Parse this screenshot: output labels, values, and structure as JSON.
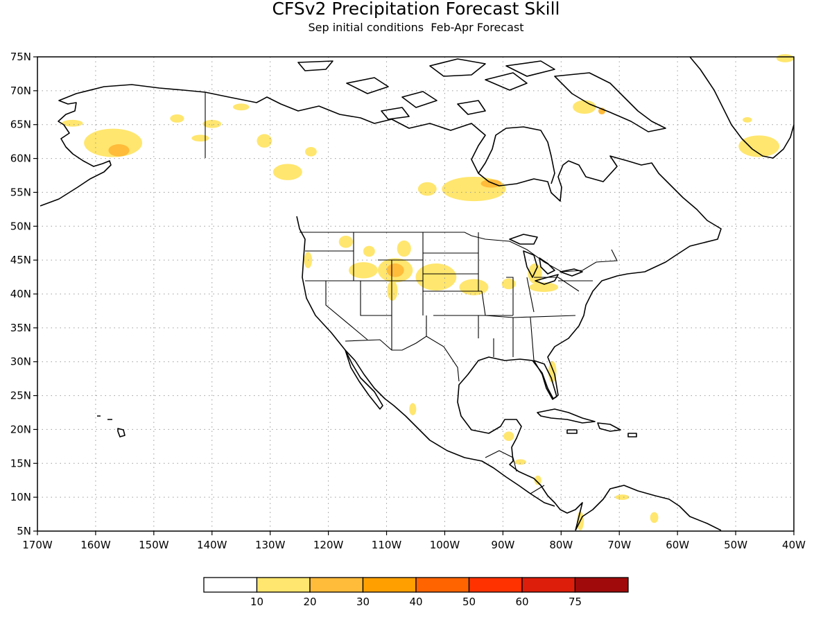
{
  "title": "CFSv2 Precipitation Forecast Skill",
  "subtitle": "Sep initial conditions  Feb-Apr Forecast",
  "lat_labels": [
    "75N",
    "70N",
    "65N",
    "60N",
    "55N",
    "50N",
    "45N",
    "40N",
    "35N",
    "30N",
    "25N",
    "20N",
    "15N",
    "10N",
    "5N"
  ],
  "lon_labels": [
    "170W",
    "160W",
    "150W",
    "140W",
    "130W",
    "120W",
    "110W",
    "100W",
    "90W",
    "80W",
    "70W",
    "60W",
    "50W",
    "40W"
  ],
  "map_extent": {
    "lon_min": -170,
    "lon_max": -40,
    "lat_min": 5,
    "lat_max": 75
  },
  "colorbar": {
    "colors": [
      "#ffffff",
      "#ffe66e",
      "#ffbb3a",
      "#ffa000",
      "#ff6400",
      "#ff3200",
      "#dc1e0a",
      "#a00a0a"
    ],
    "labels": [
      "10",
      "20",
      "30",
      "40",
      "50",
      "60",
      "75"
    ]
  },
  "skill_regions": [
    {
      "level": 1,
      "lon": -157,
      "lat": 62.3,
      "rlon": 5,
      "rlat": 2.1
    },
    {
      "level": 2,
      "lon": -156,
      "lat": 61.2,
      "rlon": 1.8,
      "rlat": 0.9
    },
    {
      "level": 1,
      "lon": -164,
      "lat": 65.2,
      "rlon": 1.8,
      "rlat": 0.5
    },
    {
      "level": 1,
      "lon": -146,
      "lat": 65.9,
      "rlon": 1.2,
      "rlat": 0.6
    },
    {
      "level": 1,
      "lon": -140,
      "lat": 65.1,
      "rlon": 1.6,
      "rlat": 0.6
    },
    {
      "level": 1,
      "lon": -135,
      "lat": 67.6,
      "rlon": 1.4,
      "rlat": 0.5
    },
    {
      "level": 1,
      "lon": -142,
      "lat": 63,
      "rlon": 1.5,
      "rlat": 0.5
    },
    {
      "level": 1,
      "lon": -131,
      "lat": 62.6,
      "rlon": 1.3,
      "rlat": 1
    },
    {
      "level": 1,
      "lon": -123,
      "lat": 61,
      "rlon": 1,
      "rlat": 0.7
    },
    {
      "level": 1,
      "lon": -127,
      "lat": 58,
      "rlon": 2.5,
      "rlat": 1.2
    },
    {
      "level": 1,
      "lon": -103,
      "lat": 55.5,
      "rlon": 1.6,
      "rlat": 1
    },
    {
      "level": 1,
      "lon": -95,
      "lat": 55.5,
      "rlon": 5.5,
      "rlat": 1.8
    },
    {
      "level": 2,
      "lon": -92,
      "lat": 56.3,
      "rlon": 1.8,
      "rlat": 0.6
    },
    {
      "level": 1,
      "lon": -76,
      "lat": 67.6,
      "rlon": 2,
      "rlat": 1
    },
    {
      "level": 2,
      "lon": -73,
      "lat": 67,
      "rlon": 0.6,
      "rlat": 0.5
    },
    {
      "level": 1,
      "lon": -46,
      "lat": 61.8,
      "rlon": 3.5,
      "rlat": 1.6
    },
    {
      "level": 1,
      "lon": -41.5,
      "lat": 74.8,
      "rlon": 1.5,
      "rlat": 0.6
    },
    {
      "level": 1,
      "lon": -48,
      "lat": 65.7,
      "rlon": 0.8,
      "rlat": 0.4
    },
    {
      "level": 1,
      "lon": -117,
      "lat": 47.7,
      "rlon": 1.2,
      "rlat": 0.9
    },
    {
      "level": 1,
      "lon": -113,
      "lat": 46.3,
      "rlon": 1,
      "rlat": 0.8
    },
    {
      "level": 1,
      "lon": -107,
      "lat": 46.7,
      "rlon": 1.2,
      "rlat": 1.2
    },
    {
      "level": 1,
      "lon": -123.5,
      "lat": 45,
      "rlon": 0.7,
      "rlat": 1.2
    },
    {
      "level": 1,
      "lon": -114,
      "lat": 43.5,
      "rlon": 2.5,
      "rlat": 1.2
    },
    {
      "level": 1,
      "lon": -108.5,
      "lat": 43.5,
      "rlon": 3,
      "rlat": 1.8
    },
    {
      "level": 2,
      "lon": -108.5,
      "lat": 43.5,
      "rlon": 1.5,
      "rlat": 1
    },
    {
      "level": 1,
      "lon": -109,
      "lat": 40.5,
      "rlon": 0.9,
      "rlat": 1.5
    },
    {
      "level": 1,
      "lon": -101.5,
      "lat": 42.5,
      "rlon": 3.5,
      "rlat": 2
    },
    {
      "level": 1,
      "lon": -95,
      "lat": 41,
      "rlon": 2.5,
      "rlat": 1.2
    },
    {
      "level": 1,
      "lon": -89,
      "lat": 41.5,
      "rlon": 1.2,
      "rlat": 0.8
    },
    {
      "level": 1,
      "lon": -84.5,
      "lat": 43,
      "rlon": 1.2,
      "rlat": 1.5
    },
    {
      "level": 1,
      "lon": -83,
      "lat": 41,
      "rlon": 2.5,
      "rlat": 0.7
    },
    {
      "level": 1,
      "lon": -81.5,
      "lat": 28.5,
      "rlon": 0.7,
      "rlat": 1.6
    },
    {
      "level": 1,
      "lon": -105.5,
      "lat": 23,
      "rlon": 0.6,
      "rlat": 0.9
    },
    {
      "level": 1,
      "lon": -89,
      "lat": 19,
      "rlon": 0.9,
      "rlat": 0.7
    },
    {
      "level": 1,
      "lon": -87,
      "lat": 15.2,
      "rlon": 1,
      "rlat": 0.4
    },
    {
      "level": 1,
      "lon": -84,
      "lat": 12.5,
      "rlon": 0.6,
      "rlat": 0.7
    },
    {
      "level": 1,
      "lon": -76.7,
      "lat": 6.5,
      "rlon": 0.6,
      "rlat": 1.4
    },
    {
      "level": 1,
      "lon": -69.5,
      "lat": 10,
      "rlon": 1.2,
      "rlat": 0.4
    },
    {
      "level": 1,
      "lon": -64,
      "lat": 7,
      "rlon": 0.7,
      "rlat": 0.8
    }
  ]
}
